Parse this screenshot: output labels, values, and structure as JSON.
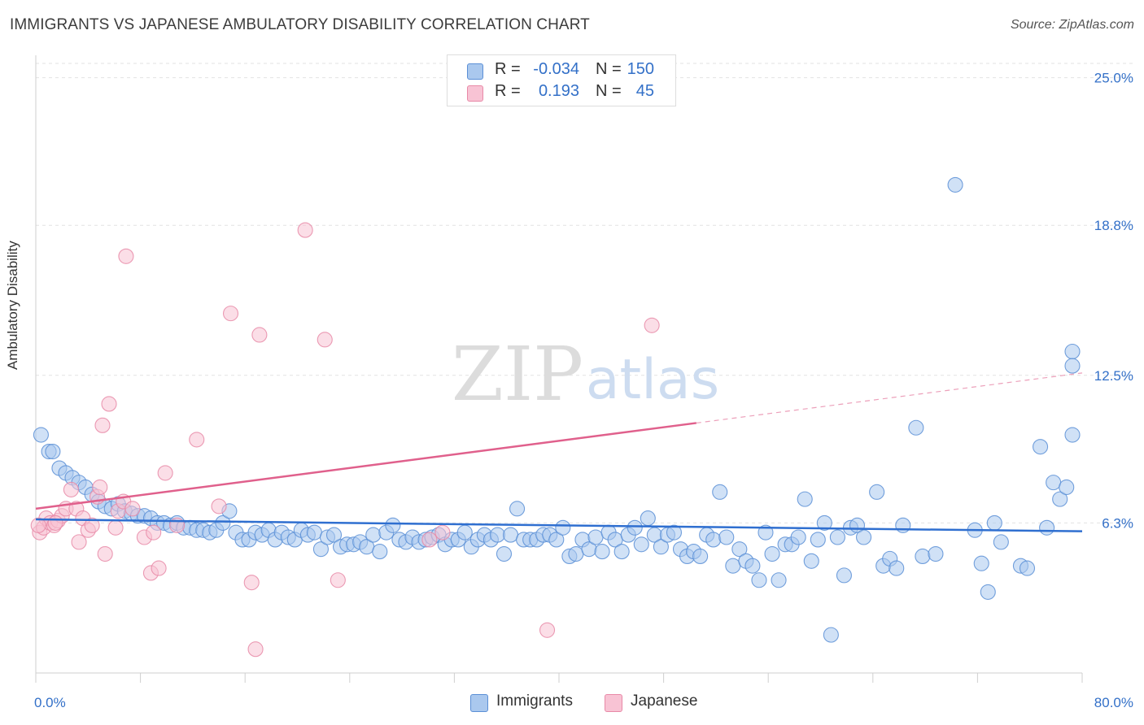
{
  "title": "IMMIGRANTS VS JAPANESE AMBULATORY DISABILITY CORRELATION CHART",
  "source": "Source: ZipAtlas.com",
  "watermark": {
    "zip": "ZIP",
    "atlas": "atlas"
  },
  "stats": [
    {
      "r_label": "R =",
      "r_value": "-0.034",
      "n_label": "N =",
      "n_value": "150",
      "color": "#aac8ee",
      "border": "#5b8fd6"
    },
    {
      "r_label": "R =",
      "r_value": "0.193",
      "n_label": "N =",
      "n_value": "45",
      "color": "#f8c3d4",
      "border": "#e889a7"
    }
  ],
  "chart_data": {
    "type": "scatter",
    "title": "IMMIGRANTS VS JAPANESE AMBULATORY DISABILITY CORRELATION CHART",
    "xlabel": "",
    "ylabel": "Ambulatory Disability",
    "xlim": [
      0,
      80
    ],
    "ylim": [
      0,
      25.6
    ],
    "x_tick_labels": [
      "0.0%",
      "80.0%"
    ],
    "y_ticks": [
      6.3,
      12.5,
      18.8,
      25.0
    ],
    "y_tick_labels": [
      "6.3%",
      "12.5%",
      "18.8%",
      "25.0%"
    ],
    "grid": true,
    "legend": [
      "Immigrants",
      "Japanese"
    ],
    "series": [
      {
        "name": "Immigrants",
        "color": "#5b8fd6",
        "fill": "#aac8ee",
        "trend": {
          "x0": 0,
          "y0": 6.45,
          "x1": 80,
          "y1": 5.95,
          "solid_until": 80,
          "color": "#2f6fd0"
        },
        "points": [
          [
            0.4,
            10.0
          ],
          [
            1.0,
            9.3
          ],
          [
            1.3,
            9.3
          ],
          [
            1.8,
            8.6
          ],
          [
            2.3,
            8.4
          ],
          [
            2.8,
            8.2
          ],
          [
            3.3,
            8.0
          ],
          [
            3.8,
            7.8
          ],
          [
            4.3,
            7.5
          ],
          [
            4.8,
            7.2
          ],
          [
            5.3,
            7.0
          ],
          [
            5.8,
            6.9
          ],
          [
            6.3,
            7.1
          ],
          [
            6.8,
            6.8
          ],
          [
            7.3,
            6.7
          ],
          [
            7.8,
            6.6
          ],
          [
            8.3,
            6.6
          ],
          [
            8.8,
            6.5
          ],
          [
            9.3,
            6.3
          ],
          [
            9.8,
            6.3
          ],
          [
            10.3,
            6.2
          ],
          [
            10.8,
            6.3
          ],
          [
            11.3,
            6.1
          ],
          [
            11.8,
            6.1
          ],
          [
            12.3,
            6.0
          ],
          [
            12.8,
            6.0
          ],
          [
            13.3,
            5.9
          ],
          [
            13.8,
            6.0
          ],
          [
            14.3,
            6.3
          ],
          [
            14.8,
            6.8
          ],
          [
            15.3,
            5.9
          ],
          [
            15.8,
            5.6
          ],
          [
            16.3,
            5.6
          ],
          [
            16.8,
            5.9
          ],
          [
            17.3,
            5.8
          ],
          [
            17.8,
            6.0
          ],
          [
            18.3,
            5.6
          ],
          [
            18.8,
            5.9
          ],
          [
            19.3,
            5.7
          ],
          [
            19.8,
            5.6
          ],
          [
            20.3,
            6.0
          ],
          [
            20.8,
            5.8
          ],
          [
            21.3,
            5.9
          ],
          [
            21.8,
            5.2
          ],
          [
            22.3,
            5.7
          ],
          [
            22.8,
            5.8
          ],
          [
            23.3,
            5.3
          ],
          [
            23.8,
            5.4
          ],
          [
            24.3,
            5.4
          ],
          [
            24.8,
            5.5
          ],
          [
            25.3,
            5.3
          ],
          [
            25.8,
            5.8
          ],
          [
            26.3,
            5.1
          ],
          [
            26.8,
            5.9
          ],
          [
            27.3,
            6.2
          ],
          [
            27.8,
            5.6
          ],
          [
            28.3,
            5.5
          ],
          [
            28.8,
            5.7
          ],
          [
            29.3,
            5.5
          ],
          [
            29.8,
            5.6
          ],
          [
            30.3,
            5.7
          ],
          [
            30.8,
            5.8
          ],
          [
            31.3,
            5.4
          ],
          [
            31.8,
            5.6
          ],
          [
            32.3,
            5.6
          ],
          [
            32.8,
            5.9
          ],
          [
            33.3,
            5.3
          ],
          [
            33.8,
            5.6
          ],
          [
            34.3,
            5.8
          ],
          [
            34.8,
            5.6
          ],
          [
            35.3,
            5.8
          ],
          [
            35.8,
            5.0
          ],
          [
            36.3,
            5.8
          ],
          [
            36.8,
            6.9
          ],
          [
            37.3,
            5.6
          ],
          [
            37.8,
            5.6
          ],
          [
            38.3,
            5.6
          ],
          [
            38.8,
            5.8
          ],
          [
            39.3,
            5.8
          ],
          [
            39.8,
            5.6
          ],
          [
            40.3,
            6.1
          ],
          [
            40.8,
            4.9
          ],
          [
            41.3,
            5.0
          ],
          [
            41.8,
            5.6
          ],
          [
            42.3,
            5.2
          ],
          [
            42.8,
            5.7
          ],
          [
            43.3,
            5.1
          ],
          [
            43.8,
            5.9
          ],
          [
            44.3,
            5.6
          ],
          [
            44.8,
            5.1
          ],
          [
            45.3,
            5.8
          ],
          [
            45.8,
            6.1
          ],
          [
            46.3,
            5.4
          ],
          [
            46.8,
            6.5
          ],
          [
            47.3,
            5.8
          ],
          [
            47.8,
            5.3
          ],
          [
            48.3,
            5.8
          ],
          [
            48.8,
            5.9
          ],
          [
            49.3,
            5.2
          ],
          [
            49.8,
            4.9
          ],
          [
            50.3,
            5.1
          ],
          [
            50.8,
            4.9
          ],
          [
            51.3,
            5.8
          ],
          [
            51.8,
            5.6
          ],
          [
            52.3,
            7.6
          ],
          [
            52.8,
            5.7
          ],
          [
            53.3,
            4.5
          ],
          [
            53.8,
            5.2
          ],
          [
            54.3,
            4.7
          ],
          [
            54.8,
            4.5
          ],
          [
            55.3,
            3.9
          ],
          [
            55.8,
            5.9
          ],
          [
            56.3,
            5.0
          ],
          [
            56.8,
            3.9
          ],
          [
            57.3,
            5.4
          ],
          [
            57.8,
            5.4
          ],
          [
            58.3,
            5.7
          ],
          [
            58.8,
            7.3
          ],
          [
            59.3,
            4.7
          ],
          [
            59.8,
            5.6
          ],
          [
            60.3,
            6.3
          ],
          [
            60.8,
            1.6
          ],
          [
            61.3,
            5.7
          ],
          [
            61.8,
            4.1
          ],
          [
            62.3,
            6.1
          ],
          [
            62.8,
            6.2
          ],
          [
            63.3,
            5.7
          ],
          [
            64.3,
            7.6
          ],
          [
            64.8,
            4.5
          ],
          [
            65.3,
            4.8
          ],
          [
            65.8,
            4.4
          ],
          [
            66.3,
            6.2
          ],
          [
            67.3,
            10.3
          ],
          [
            67.8,
            4.9
          ],
          [
            68.8,
            5.0
          ],
          [
            70.3,
            20.5
          ],
          [
            71.8,
            6.0
          ],
          [
            72.3,
            4.6
          ],
          [
            72.8,
            3.4
          ],
          [
            73.3,
            6.3
          ],
          [
            73.8,
            5.5
          ],
          [
            75.3,
            4.5
          ],
          [
            75.8,
            4.4
          ],
          [
            76.8,
            9.5
          ],
          [
            77.3,
            6.1
          ],
          [
            77.8,
            8.0
          ],
          [
            78.3,
            7.3
          ],
          [
            78.8,
            7.8
          ],
          [
            79.5,
            13.5
          ],
          [
            80.8,
            10.0
          ],
          [
            81.0,
            12.9
          ]
        ]
      },
      {
        "name": "Japanese",
        "color": "#e889a7",
        "fill": "#f8c3d4",
        "trend": {
          "x0": 0,
          "y0": 6.9,
          "x1": 80,
          "y1": 12.6,
          "solid_until": 50.5,
          "color": "#e0608c"
        },
        "points": [
          [
            0.3,
            5.9
          ],
          [
            0.6,
            6.1
          ],
          [
            0.8,
            6.5
          ],
          [
            1.1,
            6.3
          ],
          [
            1.4,
            6.2
          ],
          [
            1.7,
            6.4
          ],
          [
            2.0,
            6.6
          ],
          [
            2.3,
            6.9
          ],
          [
            2.7,
            7.7
          ],
          [
            3.1,
            6.9
          ],
          [
            3.3,
            5.5
          ],
          [
            3.6,
            6.5
          ],
          [
            4.0,
            6.0
          ],
          [
            4.3,
            6.2
          ],
          [
            4.7,
            7.4
          ],
          [
            4.9,
            7.8
          ],
          [
            5.1,
            10.4
          ],
          [
            5.3,
            5.0
          ],
          [
            5.6,
            11.3
          ],
          [
            6.1,
            6.1
          ],
          [
            6.3,
            6.8
          ],
          [
            6.7,
            7.2
          ],
          [
            6.9,
            17.5
          ],
          [
            7.4,
            6.9
          ],
          [
            8.3,
            5.7
          ],
          [
            8.8,
            4.2
          ],
          [
            9.0,
            5.9
          ],
          [
            9.4,
            4.4
          ],
          [
            9.9,
            8.4
          ],
          [
            10.8,
            6.2
          ],
          [
            12.3,
            9.8
          ],
          [
            14.0,
            7.0
          ],
          [
            14.9,
            15.1
          ],
          [
            16.5,
            3.8
          ],
          [
            16.8,
            1.0
          ],
          [
            17.1,
            14.2
          ],
          [
            20.6,
            18.6
          ],
          [
            22.1,
            14.0
          ],
          [
            23.1,
            3.9
          ],
          [
            30.1,
            5.6
          ],
          [
            31.1,
            5.9
          ],
          [
            39.1,
            1.8
          ],
          [
            47.1,
            14.6
          ],
          [
            0.2,
            6.2
          ],
          [
            1.5,
            6.3
          ]
        ]
      }
    ]
  },
  "legend": {
    "items": [
      "Immigrants",
      "Japanese"
    ]
  }
}
